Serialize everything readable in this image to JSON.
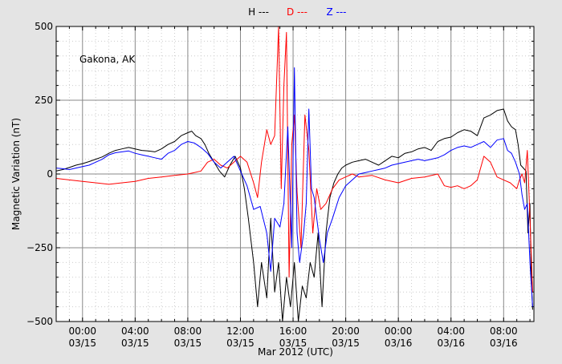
{
  "chart_data": {
    "type": "line",
    "title": "",
    "xlabel": "Mar 2012 (UTC)",
    "ylabel": "Magnetic Variation (nT)",
    "annotation": "Gakona, AK",
    "x_unit": "hours since 2012-03-15 00:00 UTC",
    "xlim": [
      -2.0,
      34.3
    ],
    "ylim": [
      -500,
      500
    ],
    "y_ticks": [
      -500,
      -250,
      0,
      250,
      500
    ],
    "y_tick_labels": [
      "−500",
      "−250",
      "0",
      "250",
      "500"
    ],
    "x_ticks": [
      0,
      4,
      8,
      12,
      16,
      20,
      24,
      28,
      32
    ],
    "x_tick_labels": [
      [
        "00:00",
        "03/15"
      ],
      [
        "04:00",
        "03/15"
      ],
      [
        "08:00",
        "03/15"
      ],
      [
        "12:00",
        "03/15"
      ],
      [
        "16:00",
        "03/15"
      ],
      [
        "20:00",
        "03/15"
      ],
      [
        "00:00",
        "03/16"
      ],
      [
        "04:00",
        "03/16"
      ],
      [
        "08:00",
        "03/16"
      ]
    ],
    "grid": true,
    "legend_position": "top-center",
    "series": [
      {
        "name": "H ---",
        "color": "#000000",
        "points": [
          [
            -2.0,
            10
          ],
          [
            -1.5,
            15
          ],
          [
            -1.0,
            22
          ],
          [
            -0.5,
            30
          ],
          [
            0.0,
            35
          ],
          [
            0.5,
            42
          ],
          [
            1.0,
            50
          ],
          [
            1.5,
            58
          ],
          [
            2.0,
            70
          ],
          [
            2.5,
            80
          ],
          [
            3.0,
            85
          ],
          [
            3.5,
            90
          ],
          [
            4.0,
            85
          ],
          [
            4.5,
            80
          ],
          [
            5.0,
            78
          ],
          [
            5.5,
            75
          ],
          [
            6.0,
            85
          ],
          [
            6.5,
            100
          ],
          [
            7.0,
            110
          ],
          [
            7.5,
            130
          ],
          [
            8.0,
            140
          ],
          [
            8.3,
            145
          ],
          [
            8.6,
            130
          ],
          [
            9.0,
            120
          ],
          [
            9.3,
            100
          ],
          [
            9.6,
            70
          ],
          [
            10.0,
            40
          ],
          [
            10.4,
            10
          ],
          [
            10.8,
            -10
          ],
          [
            11.2,
            30
          ],
          [
            11.6,
            60
          ],
          [
            12.0,
            20
          ],
          [
            12.3,
            -50
          ],
          [
            12.6,
            -150
          ],
          [
            13.0,
            -300
          ],
          [
            13.3,
            -450
          ],
          [
            13.6,
            -300
          ],
          [
            14.0,
            -420
          ],
          [
            14.3,
            -150
          ],
          [
            14.6,
            -400
          ],
          [
            14.9,
            -300
          ],
          [
            15.2,
            -500
          ],
          [
            15.5,
            -350
          ],
          [
            15.8,
            -450
          ],
          [
            16.1,
            -300
          ],
          [
            16.4,
            -500
          ],
          [
            16.7,
            -380
          ],
          [
            17.0,
            -420
          ],
          [
            17.3,
            -300
          ],
          [
            17.6,
            -350
          ],
          [
            17.9,
            -200
          ],
          [
            18.2,
            -450
          ],
          [
            18.5,
            -200
          ],
          [
            18.8,
            -80
          ],
          [
            19.1,
            -30
          ],
          [
            19.4,
            0
          ],
          [
            19.7,
            20
          ],
          [
            20.0,
            30
          ],
          [
            20.5,
            40
          ],
          [
            21.0,
            45
          ],
          [
            21.5,
            50
          ],
          [
            22.0,
            40
          ],
          [
            22.5,
            30
          ],
          [
            23.0,
            45
          ],
          [
            23.5,
            60
          ],
          [
            24.0,
            55
          ],
          [
            24.5,
            70
          ],
          [
            25.0,
            75
          ],
          [
            25.5,
            85
          ],
          [
            26.0,
            90
          ],
          [
            26.5,
            80
          ],
          [
            27.0,
            110
          ],
          [
            27.5,
            120
          ],
          [
            28.0,
            125
          ],
          [
            28.5,
            140
          ],
          [
            29.0,
            150
          ],
          [
            29.5,
            145
          ],
          [
            30.0,
            130
          ],
          [
            30.5,
            190
          ],
          [
            31.0,
            200
          ],
          [
            31.5,
            215
          ],
          [
            32.0,
            220
          ],
          [
            32.3,
            180
          ],
          [
            32.6,
            160
          ],
          [
            32.9,
            150
          ],
          [
            33.1,
            100
          ],
          [
            33.3,
            30
          ],
          [
            33.5,
            20
          ],
          [
            33.7,
            10
          ],
          [
            33.85,
            -200
          ],
          [
            34.0,
            -100
          ],
          [
            34.1,
            -350
          ],
          [
            34.2,
            -460
          ]
        ]
      },
      {
        "name": "D ---",
        "color": "#ff0000",
        "points": [
          [
            -2.0,
            -15
          ],
          [
            -1.0,
            -20
          ],
          [
            0.0,
            -25
          ],
          [
            1.0,
            -30
          ],
          [
            2.0,
            -35
          ],
          [
            3.0,
            -30
          ],
          [
            4.0,
            -25
          ],
          [
            5.0,
            -15
          ],
          [
            6.0,
            -10
          ],
          [
            7.0,
            -5
          ],
          [
            8.0,
            0
          ],
          [
            8.5,
            5
          ],
          [
            9.0,
            10
          ],
          [
            9.5,
            40
          ],
          [
            10.0,
            50
          ],
          [
            10.5,
            30
          ],
          [
            11.0,
            20
          ],
          [
            11.5,
            40
          ],
          [
            12.0,
            60
          ],
          [
            12.5,
            40
          ],
          [
            13.0,
            -30
          ],
          [
            13.3,
            -80
          ],
          [
            13.6,
            40
          ],
          [
            14.0,
            150
          ],
          [
            14.3,
            100
          ],
          [
            14.6,
            130
          ],
          [
            14.9,
            500
          ],
          [
            15.1,
            -50
          ],
          [
            15.3,
            300
          ],
          [
            15.5,
            480
          ],
          [
            15.7,
            -350
          ],
          [
            15.9,
            100
          ],
          [
            16.1,
            200
          ],
          [
            16.3,
            -60
          ],
          [
            16.6,
            -250
          ],
          [
            16.9,
            200
          ],
          [
            17.2,
            80
          ],
          [
            17.5,
            -200
          ],
          [
            17.8,
            -50
          ],
          [
            18.1,
            -120
          ],
          [
            18.5,
            -100
          ],
          [
            19.0,
            -50
          ],
          [
            19.5,
            -20
          ],
          [
            20.0,
            -10
          ],
          [
            20.5,
            0
          ],
          [
            21.0,
            -10
          ],
          [
            22.0,
            -5
          ],
          [
            23.0,
            -20
          ],
          [
            24.0,
            -30
          ],
          [
            25.0,
            -15
          ],
          [
            26.0,
            -10
          ],
          [
            27.0,
            0
          ],
          [
            27.5,
            -40
          ],
          [
            28.0,
            -45
          ],
          [
            28.5,
            -40
          ],
          [
            29.0,
            -50
          ],
          [
            29.5,
            -40
          ],
          [
            30.0,
            -20
          ],
          [
            30.5,
            60
          ],
          [
            31.0,
            40
          ],
          [
            31.5,
            -10
          ],
          [
            32.0,
            -20
          ],
          [
            32.5,
            -30
          ],
          [
            33.0,
            -50
          ],
          [
            33.2,
            -20
          ],
          [
            33.4,
            0
          ],
          [
            33.6,
            -30
          ],
          [
            33.8,
            80
          ],
          [
            34.0,
            -150
          ],
          [
            34.2,
            -400
          ]
        ]
      },
      {
        "name": "Z ---",
        "color": "#0000ff",
        "points": [
          [
            -2.0,
            20
          ],
          [
            -1.5,
            18
          ],
          [
            -1.0,
            15
          ],
          [
            -0.5,
            20
          ],
          [
            0.0,
            25
          ],
          [
            0.5,
            30
          ],
          [
            1.0,
            40
          ],
          [
            1.5,
            50
          ],
          [
            2.0,
            65
          ],
          [
            2.5,
            72
          ],
          [
            3.0,
            75
          ],
          [
            3.5,
            78
          ],
          [
            4.0,
            70
          ],
          [
            4.5,
            65
          ],
          [
            5.0,
            60
          ],
          [
            5.5,
            55
          ],
          [
            6.0,
            50
          ],
          [
            6.5,
            70
          ],
          [
            7.0,
            80
          ],
          [
            7.5,
            100
          ],
          [
            8.0,
            110
          ],
          [
            8.5,
            105
          ],
          [
            9.0,
            90
          ],
          [
            9.5,
            70
          ],
          [
            10.0,
            40
          ],
          [
            10.5,
            20
          ],
          [
            11.0,
            40
          ],
          [
            11.5,
            60
          ],
          [
            12.0,
            10
          ],
          [
            12.5,
            -40
          ],
          [
            13.0,
            -120
          ],
          [
            13.5,
            -110
          ],
          [
            14.0,
            -200
          ],
          [
            14.3,
            -330
          ],
          [
            14.6,
            -150
          ],
          [
            15.0,
            -180
          ],
          [
            15.3,
            -100
          ],
          [
            15.6,
            160
          ],
          [
            15.9,
            -250
          ],
          [
            16.1,
            360
          ],
          [
            16.3,
            -200
          ],
          [
            16.5,
            -300
          ],
          [
            16.8,
            -200
          ],
          [
            17.0,
            -100
          ],
          [
            17.2,
            220
          ],
          [
            17.4,
            -50
          ],
          [
            17.6,
            -80
          ],
          [
            18.0,
            -220
          ],
          [
            18.3,
            -300
          ],
          [
            18.6,
            -200
          ],
          [
            19.0,
            -150
          ],
          [
            19.5,
            -80
          ],
          [
            20.0,
            -40
          ],
          [
            20.5,
            -20
          ],
          [
            21.0,
            0
          ],
          [
            21.5,
            5
          ],
          [
            22.0,
            10
          ],
          [
            22.5,
            15
          ],
          [
            23.0,
            20
          ],
          [
            23.5,
            30
          ],
          [
            24.0,
            35
          ],
          [
            24.5,
            40
          ],
          [
            25.0,
            45
          ],
          [
            25.5,
            50
          ],
          [
            26.0,
            45
          ],
          [
            26.5,
            50
          ],
          [
            27.0,
            55
          ],
          [
            27.5,
            65
          ],
          [
            28.0,
            80
          ],
          [
            28.5,
            90
          ],
          [
            29.0,
            95
          ],
          [
            29.5,
            90
          ],
          [
            30.0,
            100
          ],
          [
            30.5,
            110
          ],
          [
            31.0,
            90
          ],
          [
            31.5,
            115
          ],
          [
            32.0,
            120
          ],
          [
            32.3,
            80
          ],
          [
            32.6,
            70
          ],
          [
            32.9,
            40
          ],
          [
            33.2,
            0
          ],
          [
            33.4,
            -70
          ],
          [
            33.6,
            -120
          ],
          [
            33.8,
            -100
          ],
          [
            34.0,
            -300
          ],
          [
            34.2,
            -450
          ]
        ]
      }
    ]
  }
}
